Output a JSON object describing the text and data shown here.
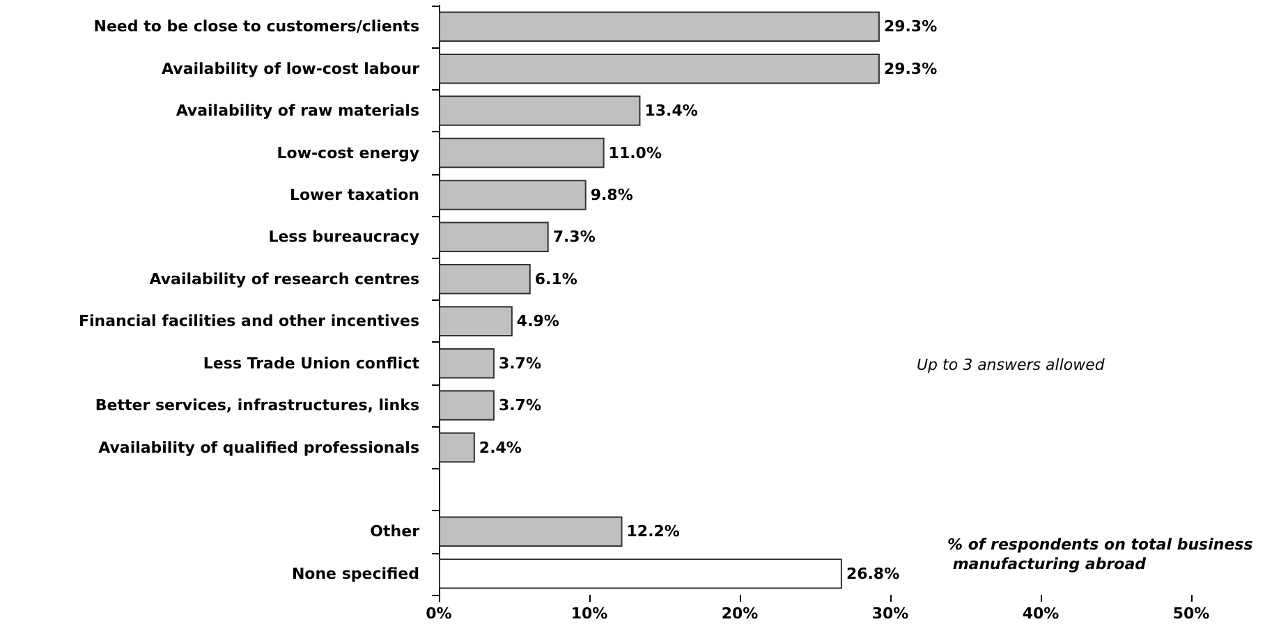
{
  "chart_data": {
    "type": "bar",
    "orientation": "horizontal",
    "categories": [
      "Need to be close to customers/clients",
      "Availability of low-cost labour",
      "Availability of raw materials",
      "Low-cost energy",
      "Lower taxation",
      "Less bureaucracy",
      "Availability of research centres",
      "Financial facilities and other incentives",
      "Less Trade Union conflict",
      "Better services, infrastructures, links",
      "Availability of qualified professionals",
      null,
      "Other",
      "None specified"
    ],
    "values": [
      29.3,
      29.3,
      13.4,
      11.0,
      9.8,
      7.3,
      6.1,
      4.9,
      3.7,
      3.7,
      2.4,
      null,
      12.2,
      26.8
    ],
    "value_labels": [
      "29.3%",
      "29.3%",
      "13.4%",
      "11.0%",
      "9.8%",
      "7.3%",
      "6.1%",
      "4.9%",
      "3.7%",
      "3.7%",
      "2.4%",
      null,
      "12.2%",
      "26.8%"
    ],
    "colors": [
      "#c0c0c0",
      "#c0c0c0",
      "#c0c0c0",
      "#c0c0c0",
      "#c0c0c0",
      "#c0c0c0",
      "#c0c0c0",
      "#c0c0c0",
      "#c0c0c0",
      "#c0c0c0",
      "#c0c0c0",
      "#c0c0c0",
      "#c0c0c0",
      "#ffffff"
    ],
    "xlim": [
      0,
      50
    ],
    "xticks": [
      {
        "value": 0,
        "label": "0%"
      },
      {
        "value": 10,
        "label": "10%"
      },
      {
        "value": 20,
        "label": "20%"
      },
      {
        "value": 30,
        "label": "30%"
      },
      {
        "value": 40,
        "label": "40%"
      },
      {
        "value": 50,
        "label": "50%"
      }
    ],
    "annotations": [
      "Up to 3 answers allowed",
      "% of respondents on total business manufacturing abroad"
    ],
    "grid": false
  }
}
